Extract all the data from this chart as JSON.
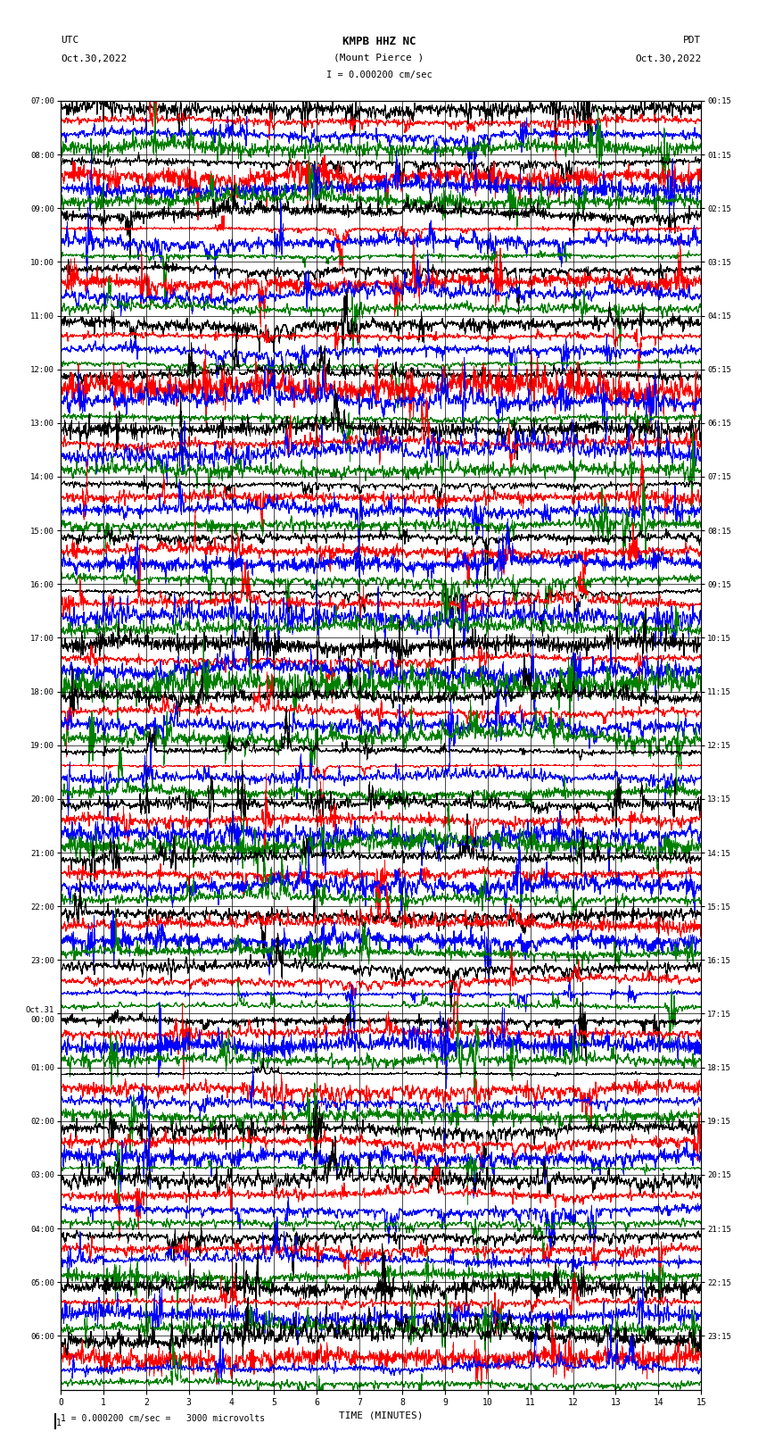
{
  "title_line1": "KMPB HHZ NC",
  "title_line2": "(Mount Pierce )",
  "title_scale": "I = 0.000200 cm/sec",
  "left_header_line1": "UTC",
  "left_header_line2": "Oct.30,2022",
  "right_header_line1": "PDT",
  "right_header_line2": "Oct.30,2022",
  "xlabel": "TIME (MINUTES)",
  "scale_label": "1 = 0.000200 cm/sec =   3000 microvolts",
  "utc_labels": [
    "07:00",
    "08:00",
    "09:00",
    "10:00",
    "11:00",
    "12:00",
    "13:00",
    "14:00",
    "15:00",
    "16:00",
    "17:00",
    "18:00",
    "19:00",
    "20:00",
    "21:00",
    "22:00",
    "23:00",
    "Oct.31\n00:00",
    "01:00",
    "02:00",
    "03:00",
    "04:00",
    "05:00",
    "06:00"
  ],
  "pdt_labels": [
    "00:15",
    "01:15",
    "02:15",
    "03:15",
    "04:15",
    "05:15",
    "06:15",
    "07:15",
    "08:15",
    "09:15",
    "10:15",
    "11:15",
    "12:15",
    "13:15",
    "14:15",
    "15:15",
    "16:15",
    "17:15",
    "18:15",
    "19:15",
    "20:15",
    "21:15",
    "22:15",
    "23:15"
  ],
  "n_rows": 24,
  "traces_per_row": 4,
  "minutes": 15,
  "colors": [
    "black",
    "red",
    "blue",
    "green"
  ],
  "background_color": "white",
  "fig_width": 8.5,
  "fig_height": 16.13,
  "dpi": 100
}
